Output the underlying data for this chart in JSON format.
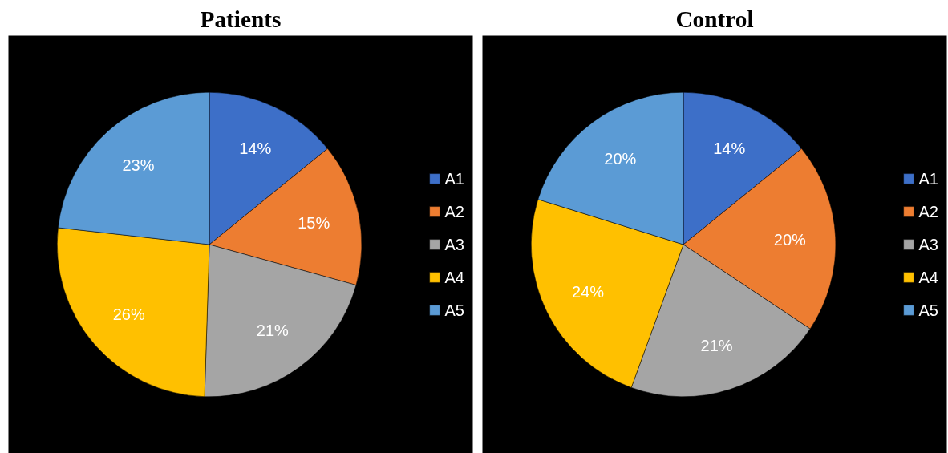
{
  "chart_data": [
    {
      "type": "pie",
      "title": "Patients",
      "categories": [
        "A1",
        "A2",
        "A3",
        "A4",
        "A5"
      ],
      "values": [
        14,
        15,
        21,
        26,
        23
      ],
      "value_labels": [
        "14%",
        "15%",
        "21%",
        "26%",
        "23%"
      ],
      "colors": [
        "#3d6fc8",
        "#ed7d31",
        "#a5a5a5",
        "#ffc000",
        "#5b9bd5"
      ],
      "legend": "right"
    },
    {
      "type": "pie",
      "title": "Control",
      "categories": [
        "A1",
        "A2",
        "A3",
        "A4",
        "A5"
      ],
      "values": [
        14,
        20,
        21,
        24,
        20
      ],
      "value_labels": [
        "14%",
        "20%",
        "21%",
        "24%",
        "20%"
      ],
      "colors": [
        "#3d6fc8",
        "#ed7d31",
        "#a5a5a5",
        "#ffc000",
        "#5b9bd5"
      ],
      "legend": "right"
    }
  ]
}
